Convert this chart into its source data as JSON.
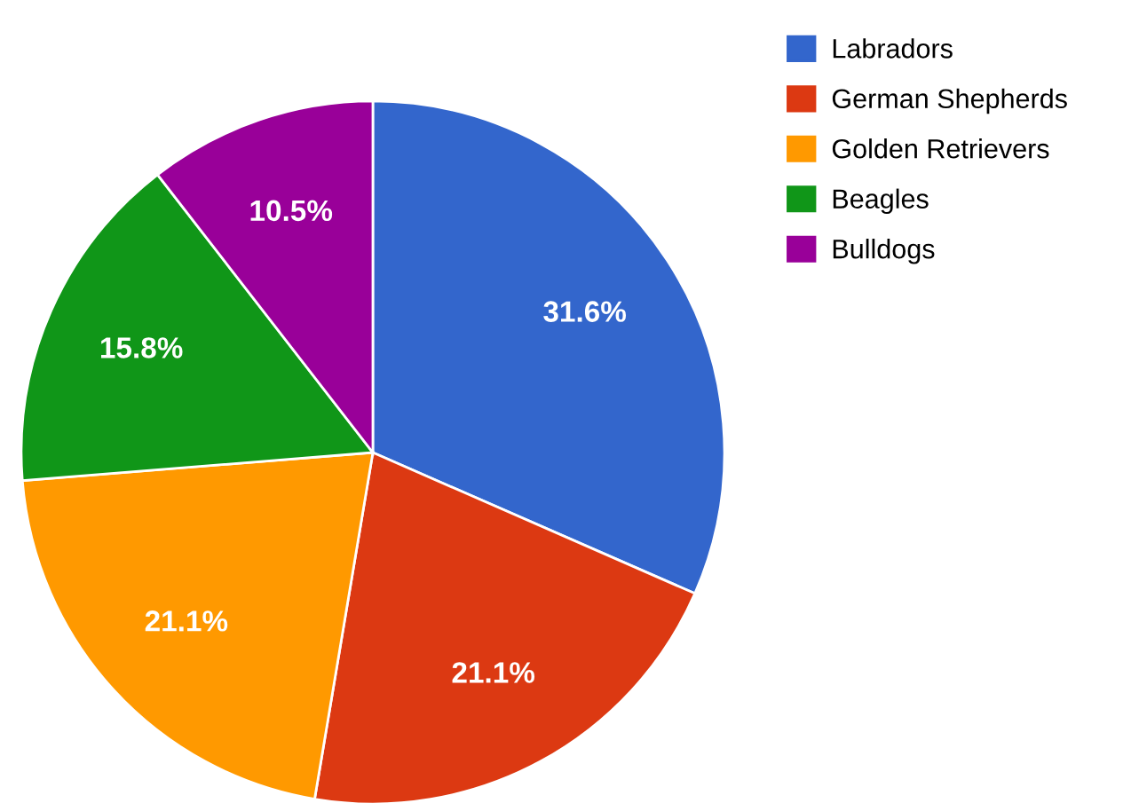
{
  "chart_data": {
    "type": "pie",
    "categories": [
      "Labradors",
      "German Shepherds",
      "Golden Retrievers",
      "Beagles",
      "Bulldogs"
    ],
    "values": [
      31.6,
      21.1,
      21.1,
      15.8,
      10.5
    ],
    "value_labels": [
      "31.6%",
      "21.1%",
      "21.1%",
      "15.8%",
      "10.5%"
    ],
    "colors": [
      "#3366cc",
      "#dc3912",
      "#ff9900",
      "#109618",
      "#990099"
    ],
    "legend": "top right"
  }
}
